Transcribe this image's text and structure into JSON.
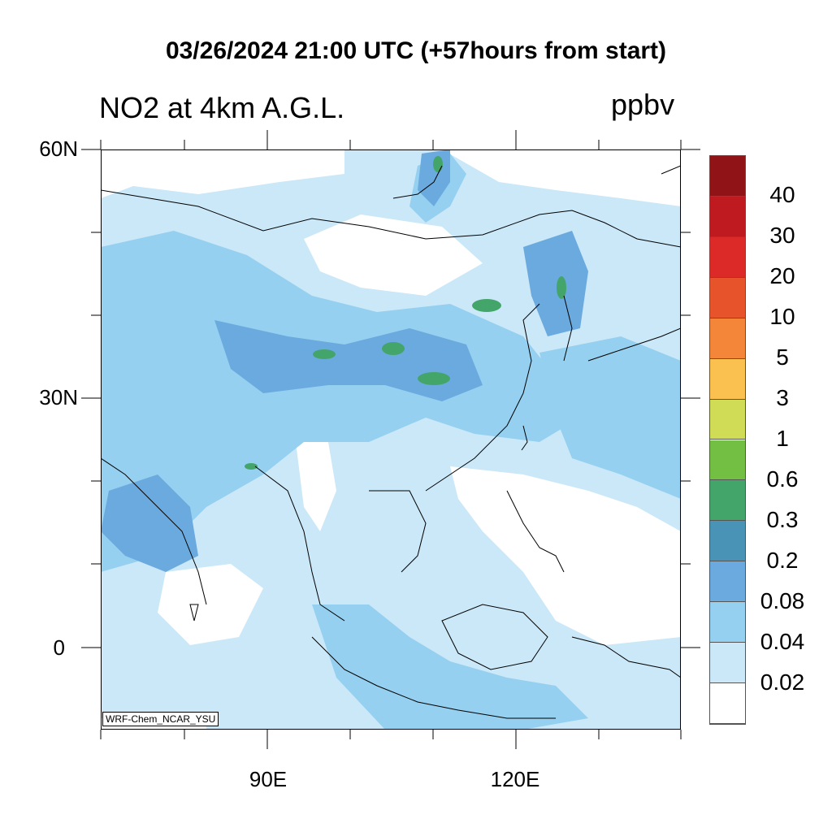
{
  "header": {
    "title": "03/26/2024 21:00 UTC (+57hours from start)",
    "variable": "NO2 at 4km A.G.L.",
    "units": "ppbv"
  },
  "map": {
    "credit": "WRF-Chem_NCAR_YSU",
    "lat_labels": [
      "60N",
      "30N",
      "0"
    ],
    "lon_labels": [
      "90E",
      "120E"
    ],
    "lat_range": [
      -10,
      60
    ],
    "lon_range": [
      70,
      140
    ]
  },
  "colorbar": {
    "labels": [
      "40",
      "30",
      "20",
      "10",
      "5",
      "3",
      "1",
      "0.6",
      "0.3",
      "0.2",
      "0.08",
      "0.04",
      "0.02"
    ],
    "colors": [
      "#8f1317",
      "#bf1a20",
      "#dc2a28",
      "#e7532a",
      "#f4863a",
      "#fac150",
      "#d1dc56",
      "#72bf44",
      "#44a56b",
      "#4893b6",
      "#6aaade",
      "#95d0f0",
      "#cbe8f8",
      "#ffffff"
    ]
  },
  "palette": {
    "lowest": "#cbe8f8",
    "low": "#95d0f0",
    "mid": "#6aaade",
    "high": "#4893b6",
    "peak": "#44a56b"
  }
}
